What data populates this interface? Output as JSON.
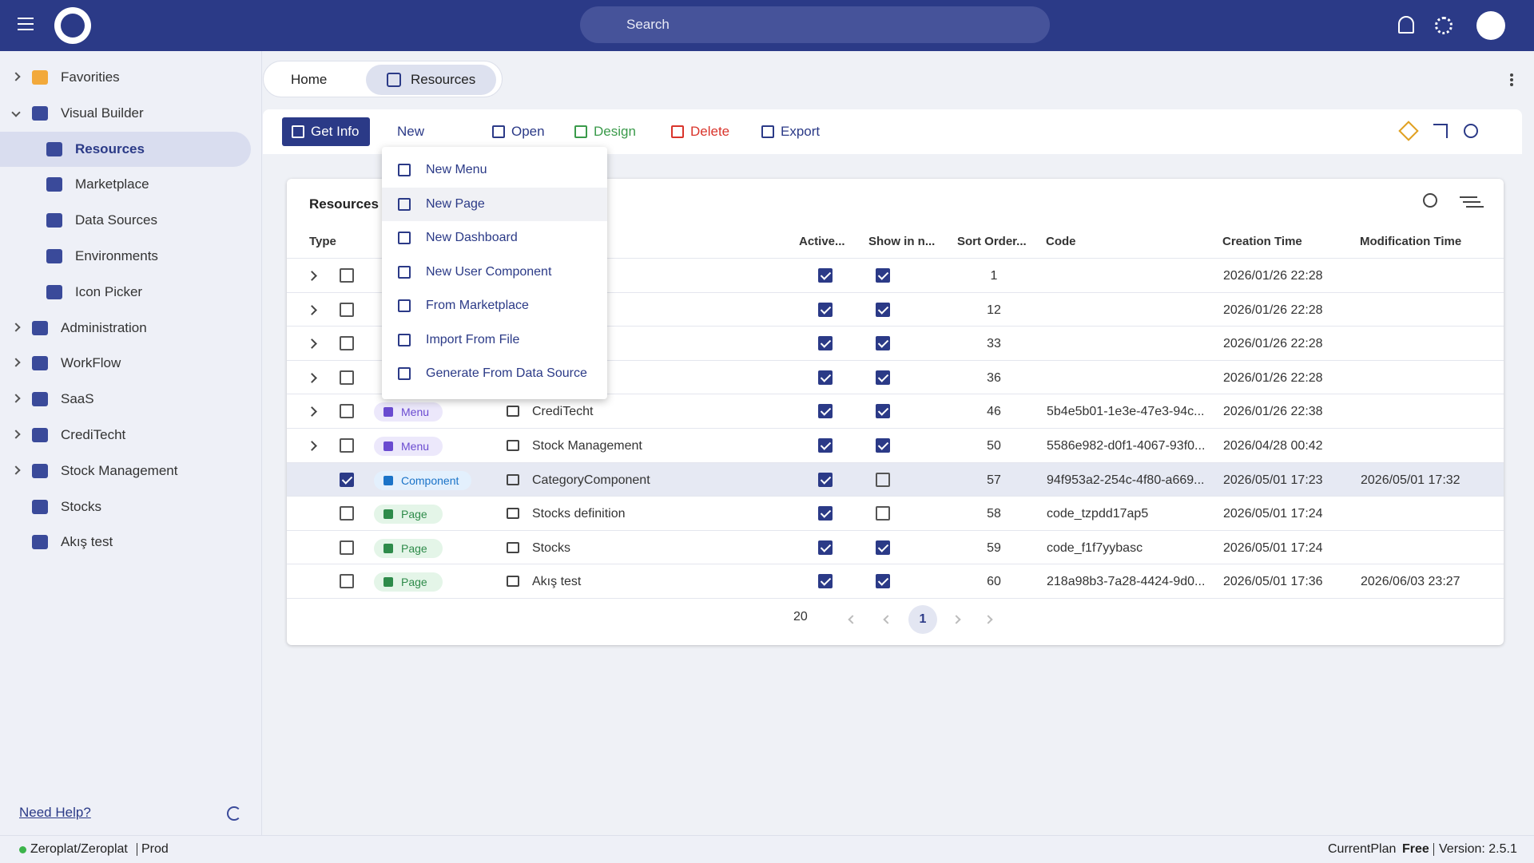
{
  "header": {
    "search_placeholder": "Search"
  },
  "sidebar": {
    "items": [
      {
        "label": "Favorities",
        "level": 0,
        "expander": "closed"
      },
      {
        "label": "Visual Builder",
        "level": 0,
        "expander": "open"
      },
      {
        "label": "Resources",
        "level": 1,
        "active": true
      },
      {
        "label": "Marketplace",
        "level": 1
      },
      {
        "label": "Data Sources",
        "level": 1
      },
      {
        "label": "Environments",
        "level": 1
      },
      {
        "label": "Icon Picker",
        "level": 1
      },
      {
        "label": "Administration",
        "level": 0,
        "expander": "closed"
      },
      {
        "label": "WorkFlow",
        "level": 0,
        "expander": "closed"
      },
      {
        "label": "SaaS",
        "level": 0,
        "expander": "closed"
      },
      {
        "label": "CrediTecht",
        "level": 0,
        "expander": "closed"
      },
      {
        "label": "Stock Management",
        "level": 0,
        "expander": "closed"
      },
      {
        "label": "Stocks",
        "level": 0
      },
      {
        "label": "Akış test",
        "level": 0
      }
    ],
    "help": "Need Help?"
  },
  "tabs": [
    "Home",
    "Resources"
  ],
  "toolbar": [
    "Get Info",
    "New",
    "Open",
    "Design",
    "Delete",
    "Export"
  ],
  "new_menu": [
    "New Menu",
    "New Page",
    "New Dashboard",
    "New User Component",
    "From Marketplace",
    "Import From File",
    "Generate From Data Source"
  ],
  "table": {
    "title": "Resources",
    "columns": [
      "Type",
      "Active...",
      "Show in n...",
      "Sort Order...",
      "Code",
      "Creation Time",
      "Modification Time"
    ],
    "rows": [
      {
        "expandable": true,
        "active": true,
        "show": true,
        "sort": "1",
        "created": "2026/01/26 22:28"
      },
      {
        "expandable": true,
        "active": true,
        "show": true,
        "sort": "12",
        "created": "2026/01/26 22:28"
      },
      {
        "expandable": true,
        "active": true,
        "show": true,
        "sort": "33",
        "created": "2026/01/26 22:28"
      },
      {
        "expandable": true,
        "active": true,
        "show": true,
        "sort": "36",
        "created": "2026/01/26 22:28"
      },
      {
        "expandable": true,
        "type": "Menu",
        "name": "CrediTecht",
        "active": true,
        "show": true,
        "sort": "46",
        "code": "5b4e5b01-1e3e-47e3-94c...",
        "created": "2026/01/26 22:38"
      },
      {
        "expandable": true,
        "type": "Menu",
        "name": "Stock Management",
        "active": true,
        "show": true,
        "sort": "50",
        "code": "5586e982-d0f1-4067-93f0...",
        "created": "2026/04/28 00:42"
      },
      {
        "selected": true,
        "type": "Component",
        "name": "CategoryComponent",
        "active": true,
        "show": false,
        "sort": "57",
        "code": "94f953a2-254c-4f80-a669...",
        "created": "2026/05/01 17:23",
        "modified": "2026/05/01 17:32"
      },
      {
        "type": "Page",
        "name": "Stocks definition",
        "active": true,
        "show": false,
        "sort": "58",
        "code": "code_tzpdd17ap5",
        "created": "2026/05/01 17:24"
      },
      {
        "type": "Page",
        "name": "Stocks",
        "active": true,
        "show": true,
        "sort": "59",
        "code": "code_f1f7yybasc",
        "created": "2026/05/01 17:24"
      },
      {
        "type": "Page",
        "name": "Akış test",
        "active": true,
        "show": true,
        "sort": "60",
        "code": "218a98b3-7a28-4424-9d0...",
        "created": "2026/05/01 17:36",
        "modified": "2026/06/03 23:27"
      }
    ],
    "page_size": "20",
    "page": "1"
  },
  "footer": {
    "org": "Zeroplat/Zeroplat",
    "env": "Prod",
    "plan_label": "CurrentPlan",
    "plan": "Free",
    "version": "Version: 2.5.1"
  }
}
